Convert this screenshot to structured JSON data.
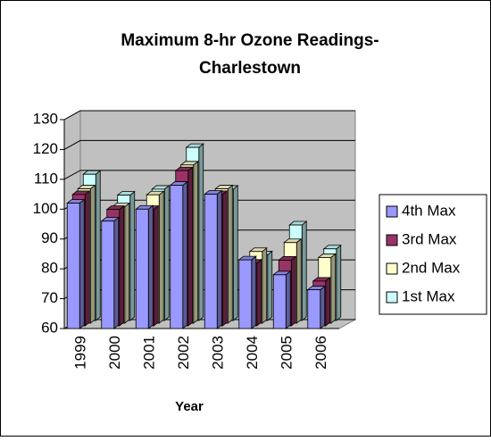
{
  "chart_data": {
    "type": "bar3d",
    "title": "Maximum 8-hr Ozone Readings-",
    "subtitle": "Charlestown",
    "x_label": "Year",
    "categories": [
      "1999",
      "2000",
      "2001",
      "2002",
      "2003",
      "2004",
      "2005",
      "2006"
    ],
    "series": [
      {
        "name": "4th Max",
        "color": "#9999ff",
        "values": [
          102,
          96,
          100,
          108,
          105,
          83,
          78,
          73
        ]
      },
      {
        "name": "3rd Max",
        "color": "#993366",
        "values": [
          104,
          99,
          99,
          112,
          104,
          81,
          82,
          75
        ]
      },
      {
        "name": "2nd Max",
        "color": "#ffffcc",
        "values": [
          105,
          99,
          103,
          113,
          105,
          84,
          87,
          82
        ]
      },
      {
        "name": "1st Max",
        "color": "#ccffff",
        "values": [
          109,
          102,
          104,
          118,
          104,
          82,
          92,
          84
        ]
      }
    ],
    "ylim": [
      60,
      130
    ],
    "yticks": [
      60,
      70,
      80,
      90,
      100,
      110,
      120,
      130
    ],
    "grid": true,
    "legend": "right"
  }
}
